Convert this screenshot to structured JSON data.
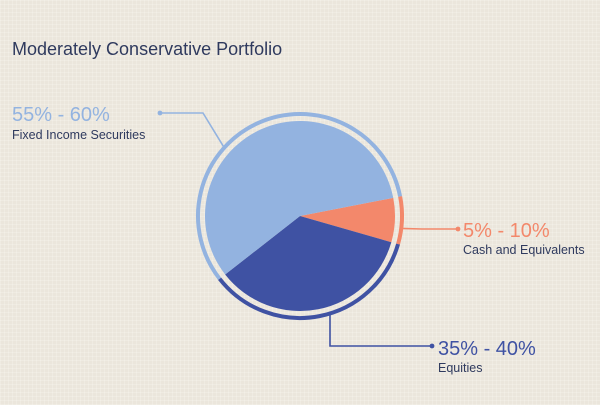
{
  "chart_data": {
    "type": "pie",
    "title": "Moderately Conservative Portfolio",
    "slices": [
      {
        "name": "Fixed Income Securities",
        "range_label": "55% - 60%",
        "value": 57.5,
        "color": "#93b3e0"
      },
      {
        "name": "Cash and Equivalents",
        "range_label": "5% - 10%",
        "value": 7.5,
        "color": "#f3886b"
      },
      {
        "name": "Equities",
        "range_label": "35% - 40%",
        "value": 35,
        "color": "#3f52a3"
      }
    ]
  },
  "colors": {
    "title": "#2f3a5e",
    "label_text": "#2f3a5e",
    "leader_light": "#93b3e0",
    "leader_cash": "#f3886b",
    "leader_dark": "#3f52a3",
    "background": "#ebe6dc"
  }
}
